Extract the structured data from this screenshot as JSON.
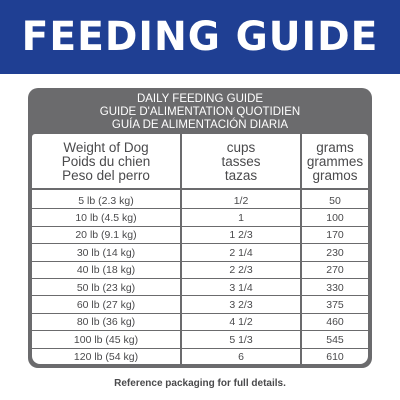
{
  "banner": {
    "title": "FEEDING GUIDE"
  },
  "header_lines": [
    "DAILY FEEDING GUIDE",
    "GUIDE D'ALIMENTATION QUOTIDIEN",
    "GUÍA DE ALIMENTACIÓN DIARIA"
  ],
  "columns": {
    "weight": [
      "Weight of Dog",
      "Poids du chien",
      "Peso del perro"
    ],
    "cups": [
      "cups",
      "tasses",
      "tazas"
    ],
    "grams": [
      "grams",
      "grammes",
      "gramos"
    ]
  },
  "rows": [
    {
      "weight": "5 lb (2.3 kg)",
      "cups": "1/2",
      "grams": "50"
    },
    {
      "weight": "10 lb (4.5 kg)",
      "cups": "1",
      "grams": "100"
    },
    {
      "weight": "20 lb (9.1 kg)",
      "cups": "1 2/3",
      "grams": "170"
    },
    {
      "weight": "30 lb (14 kg)",
      "cups": "2 1/4",
      "grams": "230"
    },
    {
      "weight": "40 lb (18 kg)",
      "cups": "2 2/3",
      "grams": "270"
    },
    {
      "weight": "50 lb (23 kg)",
      "cups": "3 1/4",
      "grams": "330"
    },
    {
      "weight": "60 lb (27 kg)",
      "cups": "3 2/3",
      "grams": "375"
    },
    {
      "weight": "80 lb (36 kg)",
      "cups": "4 1/2",
      "grams": "460"
    },
    {
      "weight": "100 lb (45 kg)",
      "cups": "5 1/3",
      "grams": "545"
    },
    {
      "weight": "120 lb (54 kg)",
      "cups": "6",
      "grams": "610"
    }
  ],
  "footer_note": "Reference packaging for full details.",
  "colors": {
    "banner": "#1f3f93",
    "table_frame": "#6b6b6d",
    "text": "#4a4a4c"
  }
}
